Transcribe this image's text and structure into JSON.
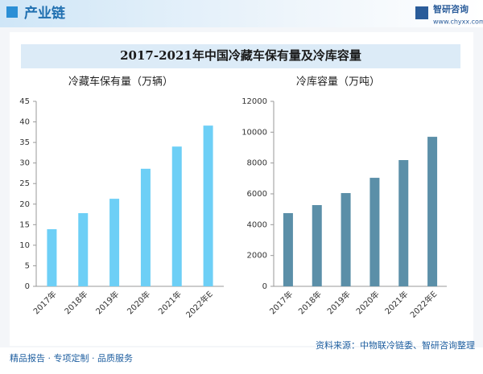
{
  "header": {
    "title": "产业链",
    "brand": "智研咨询",
    "site": "www.chyxx.com"
  },
  "title": "2017-2021年中国冷藏车保有量及冷库容量",
  "chart_data": [
    {
      "type": "bar",
      "title": "冷藏车保有量（万辆）",
      "categories": [
        "2017年",
        "2018年",
        "2019年",
        "2020年",
        "2021年",
        "2022年E"
      ],
      "values": [
        13.9,
        17.8,
        21.3,
        28.6,
        34.0,
        39.1
      ],
      "color": "#6dcff6",
      "ylim": [
        0,
        45
      ],
      "yticks": [
        0,
        5,
        10,
        15,
        20,
        25,
        30,
        35,
        40,
        45
      ]
    },
    {
      "type": "bar",
      "title": "冷库容量（万吨）",
      "categories": [
        "2017年",
        "2018年",
        "2019年",
        "2020年",
        "2021年",
        "2022年E"
      ],
      "values": [
        4750,
        5270,
        6050,
        7040,
        8190,
        9700
      ],
      "color": "#5b8fa8",
      "ylim": [
        0,
        12000
      ],
      "yticks": [
        0,
        2000,
        4000,
        6000,
        8000,
        10000,
        12000
      ]
    }
  ],
  "footer": {
    "left": "精品报告 · 专项定制 · 品质服务",
    "source": "资料来源：中物联冷链委、智研咨询整理"
  }
}
